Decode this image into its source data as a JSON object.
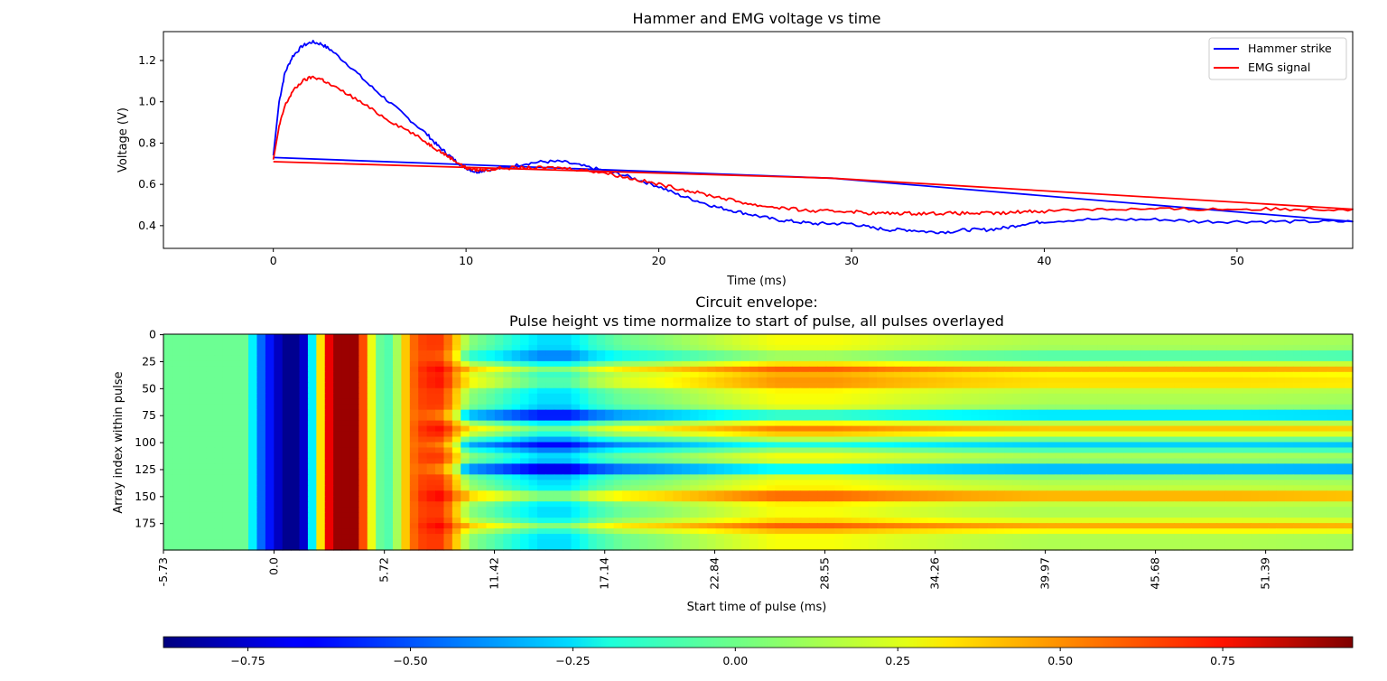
{
  "chart_data": [
    {
      "type": "line",
      "title": "Hammer and EMG voltage vs time",
      "xlabel": "Time (ms)",
      "ylabel": "Voltage (V)",
      "xlim": [
        -5.7,
        56.0
      ],
      "ylim": [
        0.29,
        1.34
      ],
      "xticks": [
        0,
        10,
        20,
        30,
        40,
        50
      ],
      "xtick_labels": [
        "0",
        "10",
        "20",
        "30",
        "40",
        "50"
      ],
      "yticks": [
        0.4,
        0.6,
        0.8,
        1.0,
        1.2
      ],
      "ytick_labels": [
        "0.4",
        "0.6",
        "0.8",
        "1.0",
        "1.2"
      ],
      "legend": "top-right",
      "grid": false,
      "series": [
        {
          "name": "Hammer strike",
          "color": "#0000ff",
          "x": [
            0,
            0.3,
            0.6,
            1.0,
            1.5,
            2.0,
            2.5,
            3.0,
            4.0,
            5.0,
            6.0,
            7.0,
            8.0,
            8.5,
            9.0,
            9.5,
            10.0,
            10.5,
            11.0,
            12.0,
            13.0,
            14.0,
            15.0,
            16.0,
            17.0,
            18.0,
            19.0,
            20.0,
            21.0,
            22.0,
            23.0,
            24.0,
            25.0,
            26.0,
            27.0,
            28.0,
            29.0,
            30.0,
            31.0,
            32.0,
            33.0,
            34.0,
            35.0,
            36.0,
            37.0,
            38.0,
            39.0,
            40.0,
            42.0,
            44.0,
            46.0,
            48.0,
            50.0,
            52.0,
            54.0,
            56.0,
            29.0,
            0
          ],
          "y": [
            0.74,
            1.0,
            1.14,
            1.22,
            1.27,
            1.29,
            1.28,
            1.25,
            1.17,
            1.08,
            1.0,
            0.92,
            0.84,
            0.79,
            0.75,
            0.71,
            0.68,
            0.66,
            0.67,
            0.68,
            0.7,
            0.71,
            0.71,
            0.69,
            0.67,
            0.65,
            0.62,
            0.59,
            0.55,
            0.52,
            0.49,
            0.47,
            0.45,
            0.43,
            0.42,
            0.41,
            0.41,
            0.41,
            0.39,
            0.38,
            0.38,
            0.37,
            0.37,
            0.38,
            0.38,
            0.39,
            0.41,
            0.42,
            0.43,
            0.43,
            0.43,
            0.42,
            0.42,
            0.42,
            0.42,
            0.42,
            0.63,
            0.73
          ]
        },
        {
          "name": "EMG signal",
          "color": "#ff0000",
          "x": [
            0,
            0.3,
            0.6,
            1.0,
            1.5,
            2.0,
            2.5,
            3.0,
            4.0,
            5.0,
            6.0,
            7.0,
            8.0,
            8.5,
            9.0,
            9.5,
            10.0,
            10.5,
            11.0,
            12.0,
            13.0,
            14.0,
            15.0,
            16.0,
            17.0,
            18.0,
            19.0,
            20.0,
            21.0,
            22.0,
            23.0,
            24.0,
            25.0,
            26.0,
            27.0,
            28.0,
            29.0,
            30.0,
            31.0,
            32.0,
            33.0,
            34.0,
            35.0,
            36.0,
            37.0,
            38.0,
            39.0,
            40.0,
            42.0,
            44.0,
            46.0,
            48.0,
            50.0,
            52.0,
            54.0,
            56.0,
            29.0,
            0
          ],
          "y": [
            0.72,
            0.88,
            0.98,
            1.05,
            1.1,
            1.12,
            1.11,
            1.08,
            1.03,
            0.97,
            0.91,
            0.86,
            0.8,
            0.77,
            0.74,
            0.71,
            0.68,
            0.67,
            0.67,
            0.68,
            0.68,
            0.68,
            0.68,
            0.67,
            0.66,
            0.64,
            0.62,
            0.6,
            0.58,
            0.56,
            0.54,
            0.52,
            0.5,
            0.49,
            0.48,
            0.47,
            0.47,
            0.47,
            0.46,
            0.46,
            0.46,
            0.46,
            0.46,
            0.46,
            0.46,
            0.46,
            0.47,
            0.47,
            0.48,
            0.48,
            0.48,
            0.48,
            0.48,
            0.48,
            0.48,
            0.48,
            0.63,
            0.71
          ]
        }
      ]
    },
    {
      "type": "heatmap",
      "title": "Circuit envelope:",
      "subtitle": "Pulse height vs time normalize to start of pulse, all pulses overlayed",
      "xlabel": "Start time of pulse (ms)",
      "ylabel": "Array index within pulse",
      "colormap": "jet",
      "xlim": [
        -5.73,
        55.9
      ],
      "ylim": [
        0,
        199
      ],
      "xtick_values": [
        -5.73,
        0.0,
        5.72,
        11.42,
        17.14,
        22.84,
        28.55,
        34.26,
        39.97,
        45.68,
        51.39
      ],
      "xtick_labels": [
        "-5.73",
        "0.0",
        "5.72",
        "11.42",
        "17.14",
        "22.84",
        "28.55",
        "34.26",
        "39.97",
        "45.68",
        "51.39"
      ],
      "yticks": [
        0,
        25,
        50,
        75,
        100,
        125,
        150,
        175
      ],
      "ytick_labels": [
        "0",
        "25",
        "50",
        "75",
        "100",
        "125",
        "150",
        "175"
      ],
      "colorbar": {
        "range": [
          -0.88,
          0.95
        ],
        "ticks": [
          -0.75,
          -0.5,
          -0.25,
          0.0,
          0.25,
          0.5,
          0.75
        ],
        "tick_labels": [
          "−0.75",
          "−0.50",
          "−0.25",
          "0.00",
          "0.25",
          "0.50",
          "0.75"
        ]
      },
      "column_profile": {
        "t": [
          -5.73,
          -1.5,
          -0.6,
          0.5,
          1.4,
          1.7,
          2.2,
          3.0,
          4.3,
          4.8,
          5.4,
          6.0,
          6.6,
          7.0,
          7.8,
          8.6,
          9.3,
          9.7,
          10.2,
          11.5,
          12.6,
          13.8,
          15.3,
          16.5,
          18.0,
          20.0,
          23.0,
          26.0,
          29.0,
          32.0,
          36.0,
          40.0,
          45.0,
          50.0,
          55.9
        ],
        "v": [
          0.0,
          0.0,
          -0.5,
          -0.85,
          -0.85,
          -0.6,
          0.1,
          0.9,
          0.9,
          0.4,
          0.0,
          -0.05,
          0.2,
          0.5,
          0.62,
          0.62,
          0.45,
          0.2,
          0.05,
          -0.05,
          -0.15,
          -0.25,
          -0.25,
          -0.1,
          0.0,
          0.05,
          0.15,
          0.25,
          0.25,
          0.2,
          0.15,
          0.12,
          0.12,
          0.12,
          0.1
        ]
      },
      "row_bands": [
        {
          "row": 20,
          "value": -0.2
        },
        {
          "row": 33,
          "value": 0.3
        },
        {
          "row": 45,
          "value": 0.25
        },
        {
          "row": 75,
          "value": -0.45
        },
        {
          "row": 88,
          "value": 0.25
        },
        {
          "row": 103,
          "value": -0.4
        },
        {
          "row": 125,
          "value": -0.55
        },
        {
          "row": 150,
          "value": 0.35
        },
        {
          "row": 178,
          "value": 0.3
        }
      ]
    }
  ]
}
